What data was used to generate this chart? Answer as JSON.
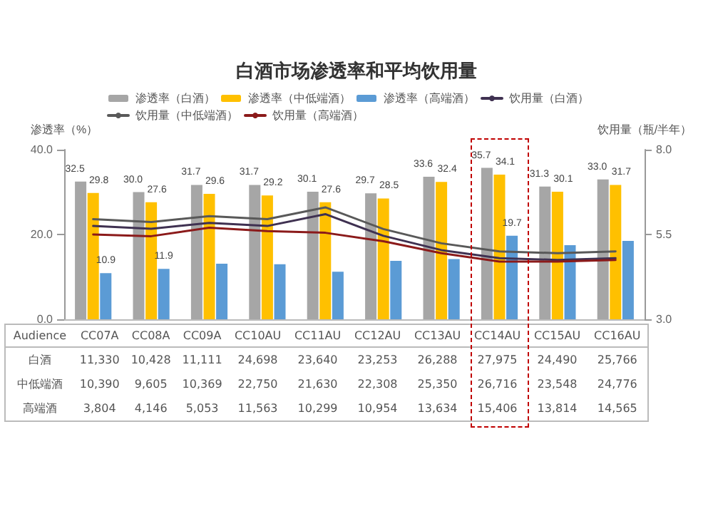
{
  "chart_data": {
    "type": "bar",
    "title": "白酒市场渗透率和平均饮用量",
    "ylabel": "渗透率（%）",
    "y2label": "饮用量（瓶/半年）",
    "categories": [
      "CC07A",
      "CC08A",
      "CC09A",
      "CC10AU",
      "CC11AU",
      "CC12AU",
      "CC13AU",
      "CC14AU",
      "CC15AU",
      "CC16AU"
    ],
    "series": [
      {
        "name": "渗透率（白酒）",
        "color": "#a6a6a6",
        "values": [
          32.5,
          30.0,
          31.7,
          31.7,
          30.1,
          29.7,
          33.6,
          35.7,
          31.3,
          33.0
        ],
        "value_labels": [
          "32.5",
          "30.0",
          "31.7",
          "31.7",
          "30.1",
          "29.7",
          "33.6",
          "35.7",
          "31.3",
          "33.0"
        ]
      },
      {
        "name": "渗透率（中低端酒）",
        "color": "#ffc000",
        "values": [
          29.8,
          27.6,
          29.6,
          29.2,
          27.6,
          28.5,
          32.4,
          34.1,
          30.1,
          31.7
        ],
        "value_labels": [
          "29.8",
          "27.6",
          "29.6",
          "29.2",
          "27.6",
          "28.5",
          "32.4",
          "34.1",
          "30.1",
          "31.7"
        ]
      },
      {
        "name": "渗透率（高端酒）",
        "color": "#5b9bd5",
        "values": [
          10.9,
          11.9,
          13.1,
          13.0,
          11.2,
          13.8,
          14.2,
          19.7,
          17.5,
          18.5
        ],
        "value_labels": [
          "10.9",
          "11.9",
          null,
          null,
          null,
          null,
          null,
          "19.7",
          null,
          null
        ]
      },
      {
        "name": "饮用量（白酒）",
        "type": "line",
        "axis": "y2",
        "color": "#3f3151",
        "values": [
          5.75,
          5.67,
          5.84,
          5.75,
          6.1,
          5.46,
          5.04,
          4.8,
          4.75,
          4.8
        ]
      },
      {
        "name": "饮用量（中低端酒）",
        "type": "line",
        "axis": "y2",
        "color": "#595959",
        "values": [
          5.95,
          5.87,
          6.04,
          5.95,
          6.3,
          5.66,
          5.24,
          5.0,
          4.95,
          5.0
        ]
      },
      {
        "name": "饮用量（高端酒）",
        "type": "line",
        "axis": "y2",
        "color": "#8b1a1a",
        "values": [
          5.5,
          5.45,
          5.7,
          5.6,
          5.55,
          5.3,
          4.95,
          4.7,
          4.7,
          4.75
        ]
      }
    ],
    "ylim": [
      0,
      40
    ],
    "yticks": [
      {
        "value": 0,
        "label": "0.0"
      },
      {
        "value": 20,
        "label": "20.0"
      },
      {
        "value": 40,
        "label": "40.0"
      }
    ],
    "y2lim": [
      3,
      8
    ],
    "y2ticks": [
      {
        "value": 3,
        "label": "3.0"
      },
      {
        "value": 5.5,
        "label": "5.5"
      },
      {
        "value": 8,
        "label": "8.0"
      }
    ],
    "legend": "top",
    "marker": "none",
    "line_style": "solid",
    "grid": false,
    "annotations": [
      "Audience",
      "白酒",
      "11,330",
      "10,428",
      "11,111",
      "24,698",
      "23,640",
      "23,253",
      "26,288",
      "27,975",
      "24,490",
      "25,766",
      "中低端酒",
      "10,390",
      "9,605",
      "10,369",
      "22,750",
      "21,630",
      "22,308",
      "25,350",
      "26,716",
      "23,548",
      "24,776",
      "高端酒",
      "3,804",
      "4,146",
      "5,053",
      "11,563",
      "10,299",
      "10,954",
      "13,634",
      "15,406",
      "13,814",
      "14,565"
    ]
  }
}
